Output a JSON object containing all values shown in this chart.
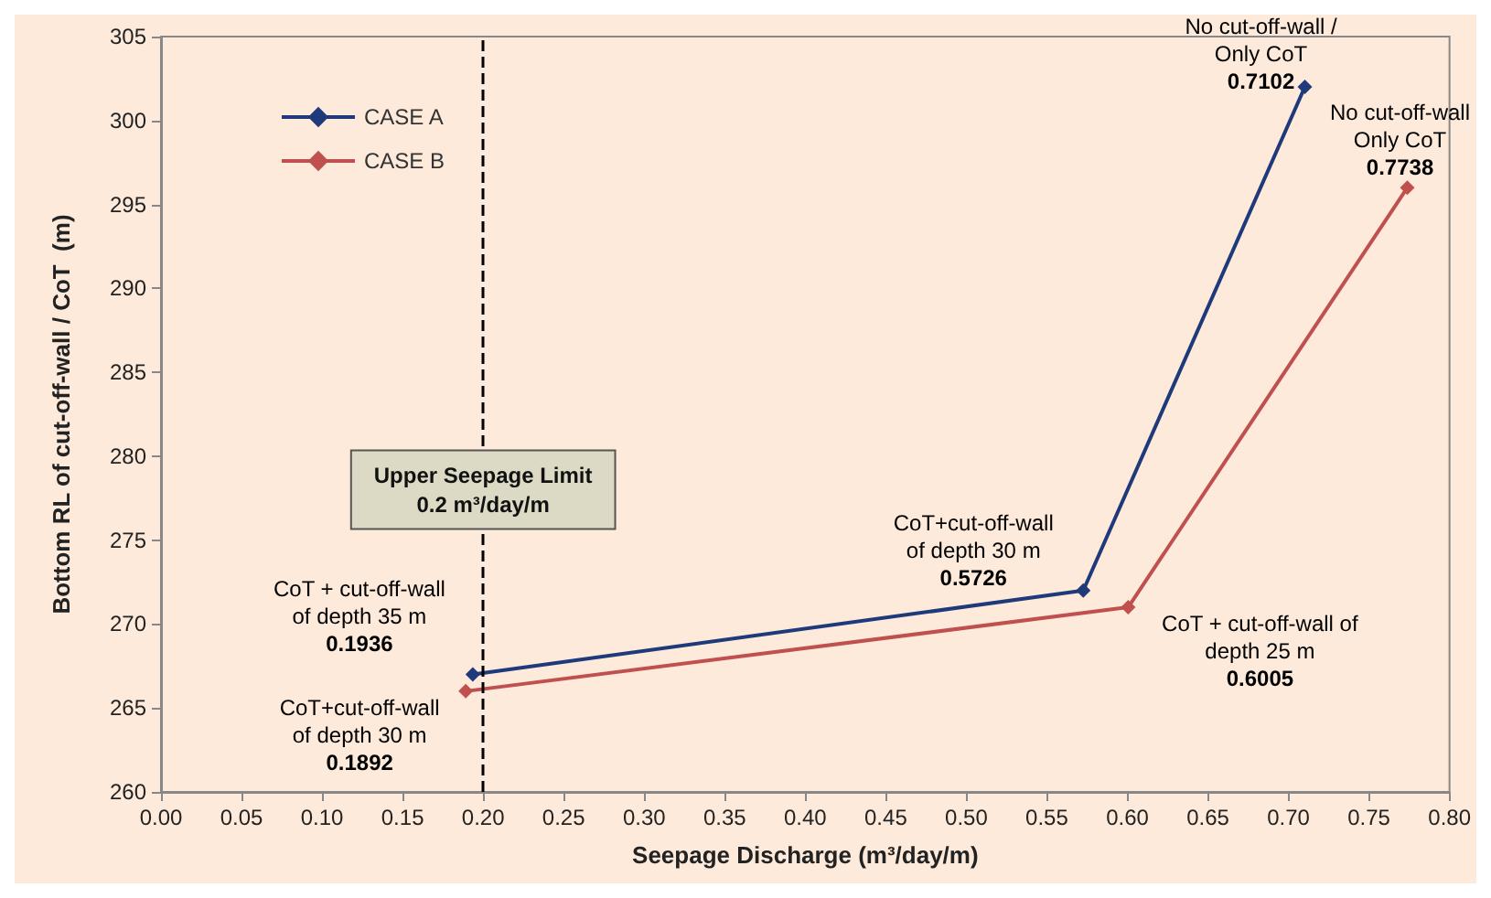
{
  "chart_data": {
    "type": "line",
    "xlabel": "Seepage Discharge (m³/day/m)",
    "ylabel": "Bottom RL of cut-off-wall / CoT  (m)",
    "series": [
      {
        "name": "CASE A",
        "color": "#1f3a7a",
        "x": [
          0.1936,
          0.5726,
          0.7102
        ],
        "values": [
          267,
          272,
          302
        ]
      },
      {
        "name": "CASE B",
        "color": "#c0504d",
        "x": [
          0.1892,
          0.6005,
          0.7738
        ],
        "values": [
          266,
          271,
          296
        ]
      }
    ],
    "xlim": [
      0,
      0.8
    ],
    "xticks": [
      {
        "value": 0,
        "label": "0.00"
      },
      {
        "value": 0.05,
        "label": "0.05"
      },
      {
        "value": 0.1,
        "label": "0.10"
      },
      {
        "value": 0.15,
        "label": "0.15"
      },
      {
        "value": 0.2,
        "label": "0.20"
      },
      {
        "value": 0.25,
        "label": "0.25"
      },
      {
        "value": 0.3,
        "label": "0.30"
      },
      {
        "value": 0.35,
        "label": "0.35"
      },
      {
        "value": 0.4,
        "label": "0.40"
      },
      {
        "value": 0.45,
        "label": "0.45"
      },
      {
        "value": 0.5,
        "label": "0.50"
      },
      {
        "value": 0.55,
        "label": "0.55"
      },
      {
        "value": 0.6,
        "label": "0.60"
      },
      {
        "value": 0.65,
        "label": "0.65"
      },
      {
        "value": 0.7,
        "label": "0.70"
      },
      {
        "value": 0.75,
        "label": "0.75"
      },
      {
        "value": 0.8,
        "label": "0.80"
      }
    ],
    "ylim": [
      260,
      305
    ],
    "yticks": [
      260,
      265,
      270,
      275,
      280,
      285,
      290,
      295,
      300,
      305
    ],
    "ref_lines": [
      {
        "axis": "x",
        "value": 0.2,
        "label": "Upper Seepage Limit\n0.2 m³/day/m",
        "color": "#000000",
        "line_style": "dashed"
      }
    ],
    "annotations": [
      {
        "text": "CoT + cut-off-wall\nof depth 35 m\n0.1936",
        "x": 0.1936,
        "y": 267
      },
      {
        "text": "CoT+cut-off-wall\nof depth 30 m\n0.1892",
        "x": 0.1892,
        "y": 266
      },
      {
        "text": "CoT+cut-off-wall\nof depth 30 m\n0.5726",
        "x": 0.5726,
        "y": 272
      },
      {
        "text": "CoT + cut-off-wall of\ndepth 25 m\n0.6005",
        "x": 0.6005,
        "y": 271
      },
      {
        "text": "No cut-off-wall /\nOnly CoT\n0.7102",
        "x": 0.7102,
        "y": 302
      },
      {
        "text": "No cut-off-wall\nOnly CoT\n0.7738",
        "x": 0.7738,
        "y": 296
      }
    ],
    "legend": "top left",
    "grid": false,
    "marker": "diamond",
    "line_style": "solid"
  }
}
